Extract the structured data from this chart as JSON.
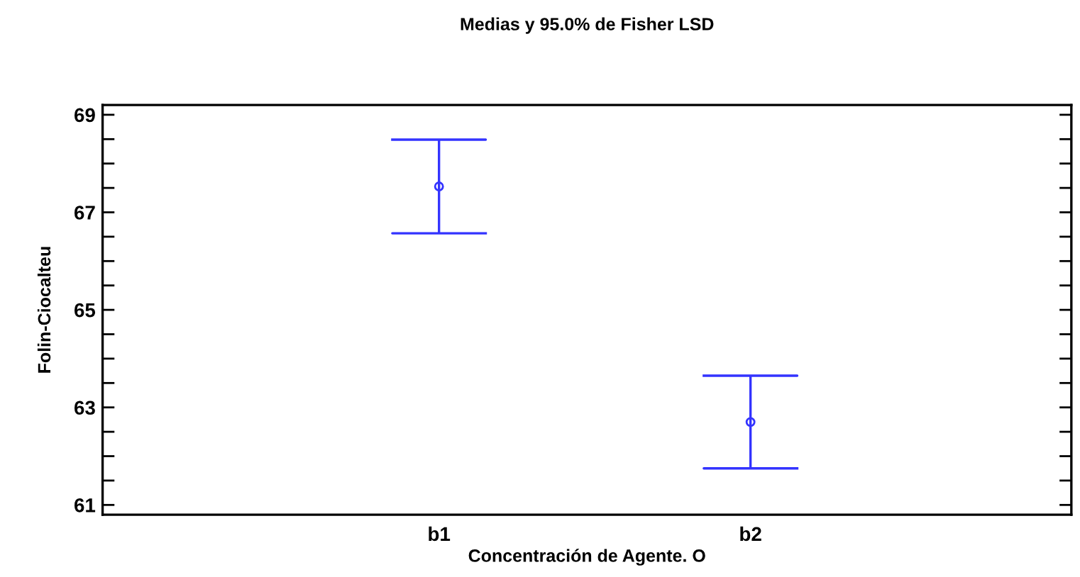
{
  "chart_data": {
    "type": "scatter",
    "title": "Medias y 95.0% de Fisher LSD",
    "xlabel": "Concentración de Agente. O",
    "ylabel": "Folin-Ciocalteu",
    "categories": [
      "b1",
      "b2"
    ],
    "series": [
      {
        "color": "#3333ff",
        "values": [
          67.53,
          62.7
        ],
        "errors": [
          0.96,
          0.95
        ]
      }
    ],
    "marker": "circle",
    "grid": false,
    "ylim": [
      60.8,
      69.2
    ],
    "yticks": [
      61,
      {
        "value": 61.5,
        "label": null
      },
      {
        "value": 62,
        "label": null
      },
      {
        "value": 62.5,
        "label": null
      },
      63,
      {
        "value": 63.5,
        "label": null
      },
      {
        "value": 64,
        "label": null
      },
      {
        "value": 64.5,
        "label": null
      },
      65,
      {
        "value": 65.5,
        "label": null
      },
      {
        "value": 66,
        "label": null
      },
      {
        "value": 66.5,
        "label": null
      },
      67,
      {
        "value": 67.5,
        "label": null
      },
      {
        "value": 68,
        "label": null
      },
      {
        "value": 68.5,
        "label": null
      },
      69
    ]
  }
}
